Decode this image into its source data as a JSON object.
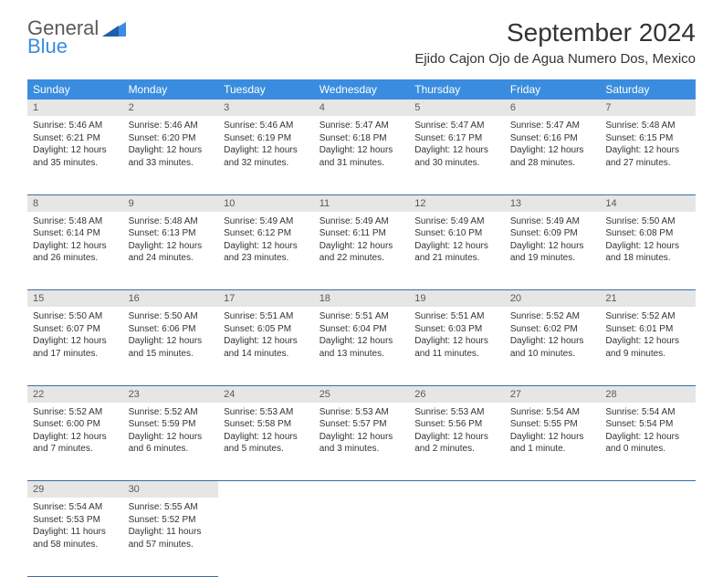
{
  "logo": {
    "word1": "General",
    "word2": "Blue"
  },
  "title": "September 2024",
  "subtitle": "Ejido Cajon Ojo de Agua Numero Dos, Mexico",
  "colors": {
    "header_bg": "#3a8dde",
    "daynum_bg": "#e6e6e6",
    "border": "#3a6fa0"
  },
  "dayHeaders": [
    "Sunday",
    "Monday",
    "Tuesday",
    "Wednesday",
    "Thursday",
    "Friday",
    "Saturday"
  ],
  "weeks": [
    [
      {
        "n": "1",
        "sunrise": "Sunrise: 5:46 AM",
        "sunset": "Sunset: 6:21 PM",
        "d1": "Daylight: 12 hours",
        "d2": "and 35 minutes."
      },
      {
        "n": "2",
        "sunrise": "Sunrise: 5:46 AM",
        "sunset": "Sunset: 6:20 PM",
        "d1": "Daylight: 12 hours",
        "d2": "and 33 minutes."
      },
      {
        "n": "3",
        "sunrise": "Sunrise: 5:46 AM",
        "sunset": "Sunset: 6:19 PM",
        "d1": "Daylight: 12 hours",
        "d2": "and 32 minutes."
      },
      {
        "n": "4",
        "sunrise": "Sunrise: 5:47 AM",
        "sunset": "Sunset: 6:18 PM",
        "d1": "Daylight: 12 hours",
        "d2": "and 31 minutes."
      },
      {
        "n": "5",
        "sunrise": "Sunrise: 5:47 AM",
        "sunset": "Sunset: 6:17 PM",
        "d1": "Daylight: 12 hours",
        "d2": "and 30 minutes."
      },
      {
        "n": "6",
        "sunrise": "Sunrise: 5:47 AM",
        "sunset": "Sunset: 6:16 PM",
        "d1": "Daylight: 12 hours",
        "d2": "and 28 minutes."
      },
      {
        "n": "7",
        "sunrise": "Sunrise: 5:48 AM",
        "sunset": "Sunset: 6:15 PM",
        "d1": "Daylight: 12 hours",
        "d2": "and 27 minutes."
      }
    ],
    [
      {
        "n": "8",
        "sunrise": "Sunrise: 5:48 AM",
        "sunset": "Sunset: 6:14 PM",
        "d1": "Daylight: 12 hours",
        "d2": "and 26 minutes."
      },
      {
        "n": "9",
        "sunrise": "Sunrise: 5:48 AM",
        "sunset": "Sunset: 6:13 PM",
        "d1": "Daylight: 12 hours",
        "d2": "and 24 minutes."
      },
      {
        "n": "10",
        "sunrise": "Sunrise: 5:49 AM",
        "sunset": "Sunset: 6:12 PM",
        "d1": "Daylight: 12 hours",
        "d2": "and 23 minutes."
      },
      {
        "n": "11",
        "sunrise": "Sunrise: 5:49 AM",
        "sunset": "Sunset: 6:11 PM",
        "d1": "Daylight: 12 hours",
        "d2": "and 22 minutes."
      },
      {
        "n": "12",
        "sunrise": "Sunrise: 5:49 AM",
        "sunset": "Sunset: 6:10 PM",
        "d1": "Daylight: 12 hours",
        "d2": "and 21 minutes."
      },
      {
        "n": "13",
        "sunrise": "Sunrise: 5:49 AM",
        "sunset": "Sunset: 6:09 PM",
        "d1": "Daylight: 12 hours",
        "d2": "and 19 minutes."
      },
      {
        "n": "14",
        "sunrise": "Sunrise: 5:50 AM",
        "sunset": "Sunset: 6:08 PM",
        "d1": "Daylight: 12 hours",
        "d2": "and 18 minutes."
      }
    ],
    [
      {
        "n": "15",
        "sunrise": "Sunrise: 5:50 AM",
        "sunset": "Sunset: 6:07 PM",
        "d1": "Daylight: 12 hours",
        "d2": "and 17 minutes."
      },
      {
        "n": "16",
        "sunrise": "Sunrise: 5:50 AM",
        "sunset": "Sunset: 6:06 PM",
        "d1": "Daylight: 12 hours",
        "d2": "and 15 minutes."
      },
      {
        "n": "17",
        "sunrise": "Sunrise: 5:51 AM",
        "sunset": "Sunset: 6:05 PM",
        "d1": "Daylight: 12 hours",
        "d2": "and 14 minutes."
      },
      {
        "n": "18",
        "sunrise": "Sunrise: 5:51 AM",
        "sunset": "Sunset: 6:04 PM",
        "d1": "Daylight: 12 hours",
        "d2": "and 13 minutes."
      },
      {
        "n": "19",
        "sunrise": "Sunrise: 5:51 AM",
        "sunset": "Sunset: 6:03 PM",
        "d1": "Daylight: 12 hours",
        "d2": "and 11 minutes."
      },
      {
        "n": "20",
        "sunrise": "Sunrise: 5:52 AM",
        "sunset": "Sunset: 6:02 PM",
        "d1": "Daylight: 12 hours",
        "d2": "and 10 minutes."
      },
      {
        "n": "21",
        "sunrise": "Sunrise: 5:52 AM",
        "sunset": "Sunset: 6:01 PM",
        "d1": "Daylight: 12 hours",
        "d2": "and 9 minutes."
      }
    ],
    [
      {
        "n": "22",
        "sunrise": "Sunrise: 5:52 AM",
        "sunset": "Sunset: 6:00 PM",
        "d1": "Daylight: 12 hours",
        "d2": "and 7 minutes."
      },
      {
        "n": "23",
        "sunrise": "Sunrise: 5:52 AM",
        "sunset": "Sunset: 5:59 PM",
        "d1": "Daylight: 12 hours",
        "d2": "and 6 minutes."
      },
      {
        "n": "24",
        "sunrise": "Sunrise: 5:53 AM",
        "sunset": "Sunset: 5:58 PM",
        "d1": "Daylight: 12 hours",
        "d2": "and 5 minutes."
      },
      {
        "n": "25",
        "sunrise": "Sunrise: 5:53 AM",
        "sunset": "Sunset: 5:57 PM",
        "d1": "Daylight: 12 hours",
        "d2": "and 3 minutes."
      },
      {
        "n": "26",
        "sunrise": "Sunrise: 5:53 AM",
        "sunset": "Sunset: 5:56 PM",
        "d1": "Daylight: 12 hours",
        "d2": "and 2 minutes."
      },
      {
        "n": "27",
        "sunrise": "Sunrise: 5:54 AM",
        "sunset": "Sunset: 5:55 PM",
        "d1": "Daylight: 12 hours",
        "d2": "and 1 minute."
      },
      {
        "n": "28",
        "sunrise": "Sunrise: 5:54 AM",
        "sunset": "Sunset: 5:54 PM",
        "d1": "Daylight: 12 hours",
        "d2": "and 0 minutes."
      }
    ],
    [
      {
        "n": "29",
        "sunrise": "Sunrise: 5:54 AM",
        "sunset": "Sunset: 5:53 PM",
        "d1": "Daylight: 11 hours",
        "d2": "and 58 minutes."
      },
      {
        "n": "30",
        "sunrise": "Sunrise: 5:55 AM",
        "sunset": "Sunset: 5:52 PM",
        "d1": "Daylight: 11 hours",
        "d2": "and 57 minutes."
      },
      null,
      null,
      null,
      null,
      null
    ]
  ]
}
